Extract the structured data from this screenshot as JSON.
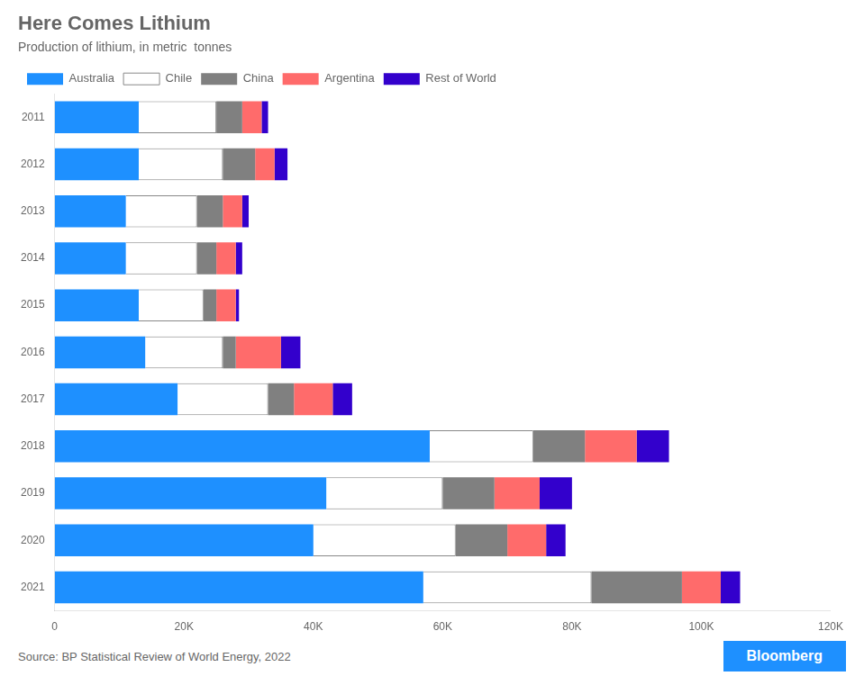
{
  "chart_data": {
    "type": "bar",
    "orientation": "horizontal",
    "stacked": true,
    "title": "Here Comes Lithium",
    "subtitle": "Production of lithium, in metric  tonnes",
    "annotations": [
      {
        "text": "Source: BP Statistical Review of World Energy, 2022"
      },
      {
        "text": "Bloomberg",
        "color": "#1E90FF"
      }
    ],
    "categories": [
      "2011",
      "2012",
      "2013",
      "2014",
      "2015",
      "2016",
      "2017",
      "2018",
      "2019",
      "2020",
      "2021"
    ],
    "series": [
      {
        "name": "Australia",
        "color": "#1E90FF",
        "values": [
          13000,
          13000,
          11000,
          11000,
          13000,
          14000,
          19000,
          58000,
          42000,
          40000,
          57000
        ]
      },
      {
        "name": "Chile",
        "color": "#FFFFFF",
        "values": [
          12000,
          13000,
          11000,
          11000,
          10000,
          12000,
          14000,
          16000,
          18000,
          22000,
          26000
        ]
      },
      {
        "name": "China",
        "color": "#808080",
        "values": [
          4000,
          5000,
          4000,
          3000,
          2000,
          2000,
          4000,
          8000,
          8000,
          8000,
          14000
        ]
      },
      {
        "name": "Argentina",
        "color": "#FF6B6B",
        "values": [
          3000,
          3000,
          3000,
          3000,
          3000,
          7000,
          6000,
          8000,
          7000,
          6000,
          6000
        ]
      },
      {
        "name": "Rest of World",
        "color": "#3300CC",
        "values": [
          1000,
          2000,
          1000,
          1000,
          500,
          3000,
          3000,
          5000,
          5000,
          3000,
          3000
        ]
      }
    ],
    "xlim": [
      0,
      120000
    ],
    "xticks": [
      0,
      {
        "value": 20000,
        "label": "20K"
      },
      {
        "value": 40000,
        "label": "40K"
      },
      {
        "value": 60000,
        "label": "60K"
      },
      {
        "value": 80000,
        "label": "80K"
      },
      {
        "value": 100000,
        "label": "100K"
      },
      {
        "value": 120000,
        "label": "120K"
      }
    ],
    "grid": false,
    "legend": "upper left"
  }
}
